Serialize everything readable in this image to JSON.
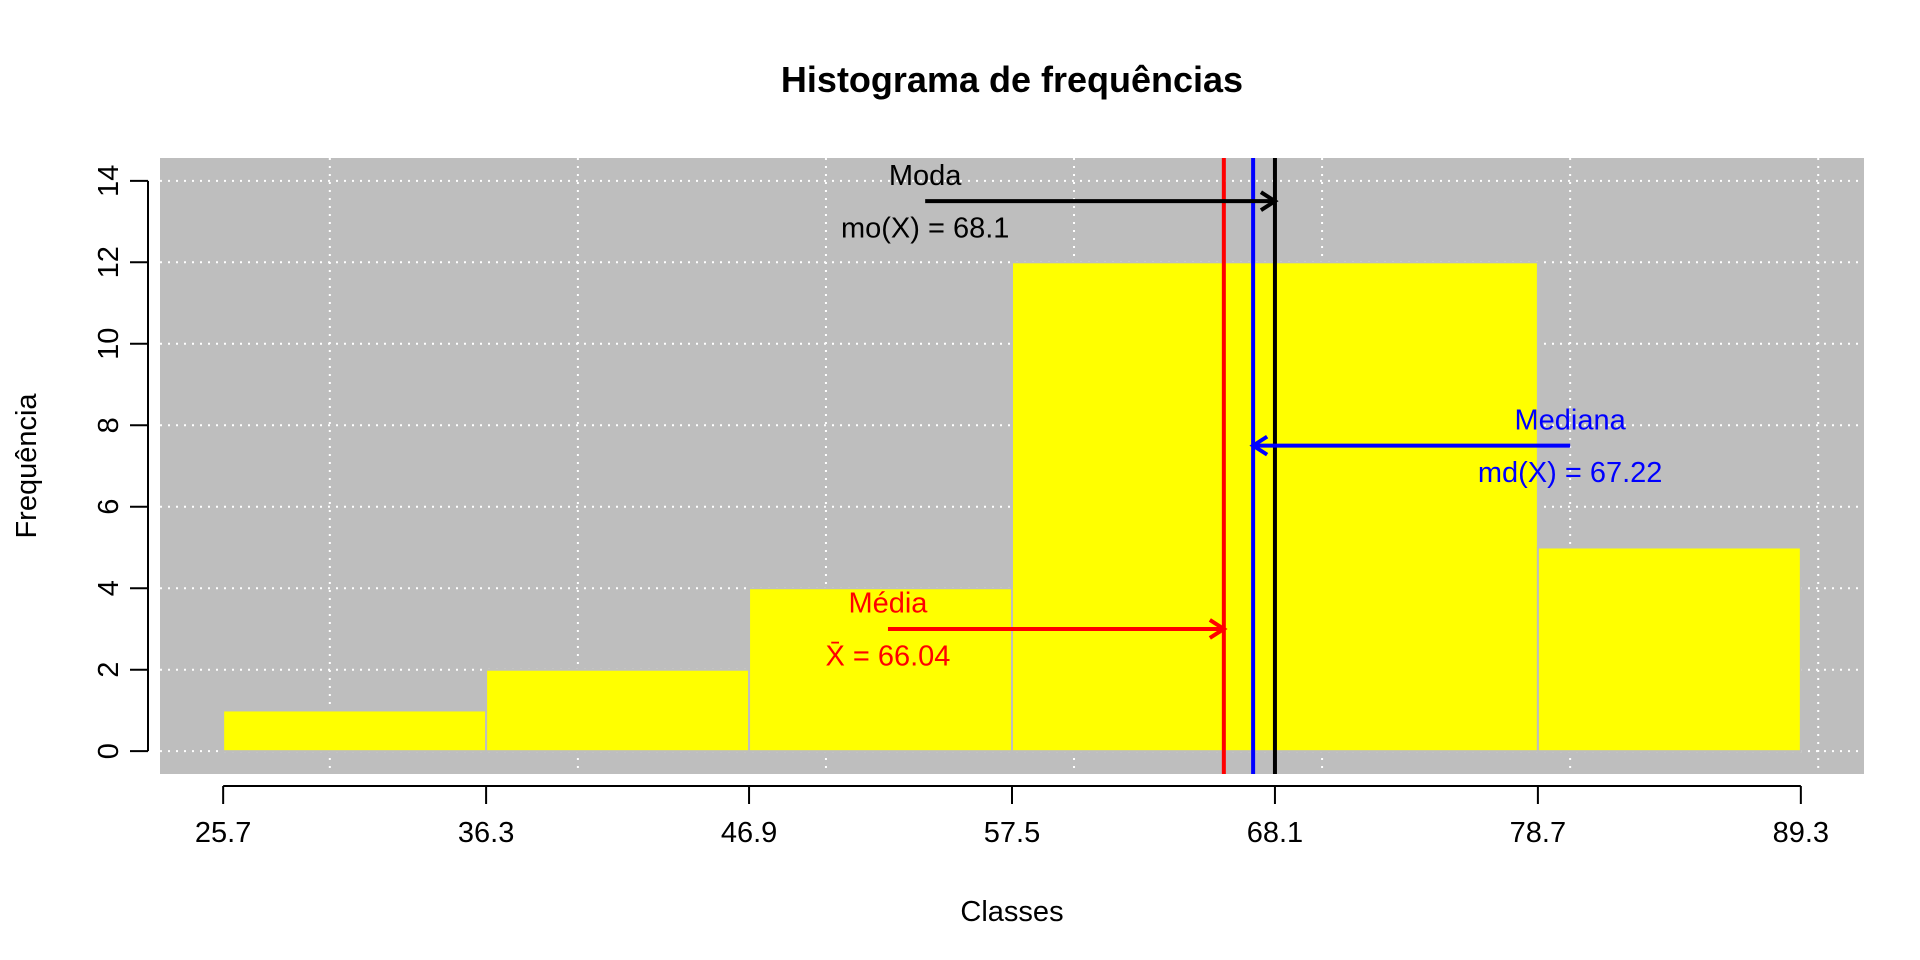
{
  "chart_data": {
    "type": "bar",
    "title": "Histograma de frequências",
    "xlabel": "Classes",
    "ylabel": "Frequência",
    "class_breaks": [
      25.7,
      36.3,
      46.9,
      57.5,
      68.1,
      78.7,
      89.3
    ],
    "x_tick_labels": [
      "25.7",
      "36.3",
      "46.9",
      "57.5",
      "68.1",
      "78.7",
      "89.3"
    ],
    "values": [
      1,
      2,
      4,
      12,
      12,
      5
    ],
    "xlim": [
      23.154,
      91.846
    ],
    "ylim": [
      -0.56,
      14.56
    ],
    "y_ticks": [
      0,
      2,
      4,
      6,
      8,
      10,
      12,
      14
    ],
    "x_grid": [
      30,
      40,
      50,
      60,
      70,
      80,
      90
    ],
    "grid": true,
    "colors": {
      "background": "#bebebe",
      "bar": "#ffff00",
      "bar_border": "#bebebe",
      "grid": "#ffffff",
      "mean": "#ff0000",
      "median": "#0000ff",
      "mode": "#000000"
    },
    "annotations": {
      "mean": {
        "value": 66.04,
        "label": "Média",
        "formula": "X̄ = 66.04",
        "arrow_from": 52.5,
        "arrow_y": 3.0,
        "label_y": 3.4,
        "formula_y": 2.4
      },
      "median": {
        "value": 67.22,
        "label": "Mediana",
        "formula": "md(X) = 67.22",
        "arrow_from": 80.0,
        "arrow_y": 7.5,
        "label_y": 7.9,
        "formula_y": 6.9
      },
      "mode": {
        "value": 68.1,
        "label": "Moda",
        "formula": "mo(X) = 68.1",
        "arrow_from": 54.0,
        "arrow_y": 13.5,
        "label_y": 13.9,
        "formula_y": 12.9
      }
    }
  }
}
